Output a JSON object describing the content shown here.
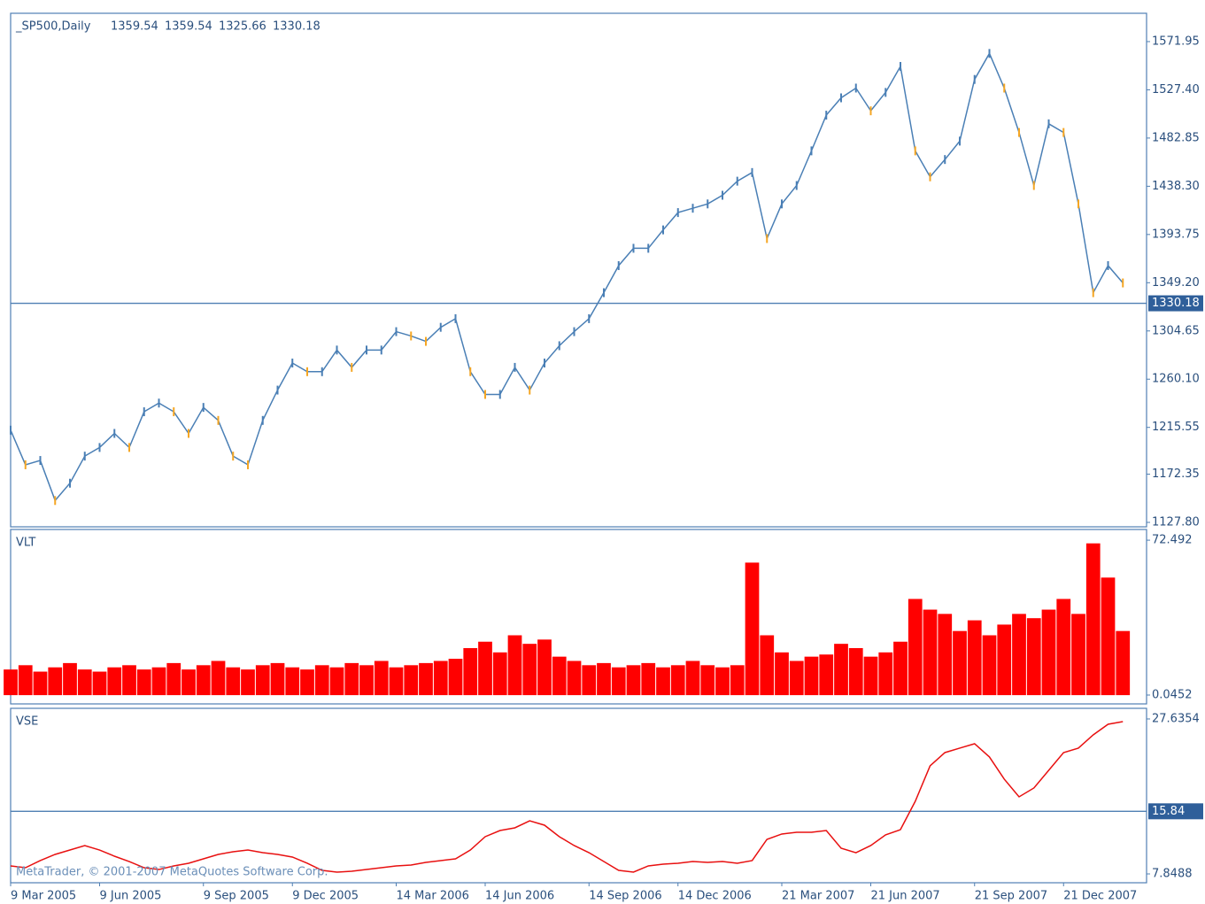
{
  "chart_data": [
    {
      "type": "line",
      "title": "_SP500,Daily",
      "quote": [
        1359.54,
        1359.54,
        1325.66,
        1330.18
      ],
      "color": "#4a7fb5",
      "down_color": "#f5a623",
      "values": [
        1213,
        1181,
        1185,
        1148,
        1164,
        1189,
        1197,
        1210,
        1197,
        1230,
        1238,
        1230,
        1210,
        1234,
        1222,
        1189,
        1181,
        1222,
        1250,
        1275,
        1267,
        1267,
        1287,
        1271,
        1287,
        1287,
        1304,
        1300,
        1295,
        1308,
        1316,
        1267,
        1246,
        1246,
        1271,
        1250,
        1275,
        1291,
        1304,
        1316,
        1340,
        1365,
        1381,
        1381,
        1398,
        1414,
        1418,
        1422,
        1430,
        1443,
        1451,
        1390,
        1422,
        1439,
        1471,
        1504,
        1520,
        1529,
        1508,
        1525,
        1549,
        1471,
        1447,
        1463,
        1480,
        1537,
        1561,
        1529,
        1488,
        1439,
        1496,
        1488,
        1422,
        1340,
        1365,
        1349
      ],
      "ylim": [
        1123.7,
        1598.1
      ],
      "yticks": [
        1571.95,
        {
          "value": 1527.4,
          "label": "1527.40"
        },
        1482.85,
        {
          "value": 1438.3,
          "label": "1438.30"
        },
        1393.75,
        {
          "value": 1349.2,
          "label": "1349.20"
        },
        1304.65,
        {
          "value": 1260.1,
          "label": "1260.10"
        },
        1215.55,
        1172.35,
        {
          "value": 1127.8,
          "label": "1127.80"
        }
      ],
      "level": 1330.18
    },
    {
      "type": "bar",
      "title": "VLT",
      "color": "#ff0000",
      "values": [
        12,
        14,
        11,
        13,
        15,
        12,
        11,
        13,
        14,
        12,
        13,
        15,
        12,
        14,
        16,
        13,
        12,
        14,
        15,
        13,
        12,
        14,
        13,
        15,
        14,
        16,
        13,
        14,
        15,
        16,
        17,
        22,
        25,
        20,
        28,
        24,
        26,
        18,
        16,
        14,
        15,
        13,
        14,
        15,
        13,
        14,
        16,
        14,
        13,
        14,
        62,
        28,
        20,
        16,
        18,
        19,
        24,
        22,
        18,
        20,
        25,
        45,
        40,
        38,
        30,
        35,
        28,
        33,
        38,
        36,
        40,
        45,
        38,
        71,
        55,
        30
      ],
      "ylim": [
        -4.1,
        77.5
      ],
      "yticks": [
        72.492,
        0.0452
      ]
    },
    {
      "type": "line",
      "title": "VSE",
      "color": "#e81010",
      "values": [
        8.87,
        8.64,
        9.55,
        10.34,
        10.9,
        11.47,
        10.9,
        10.11,
        9.43,
        8.64,
        8.41,
        8.87,
        9.21,
        9.77,
        10.34,
        10.68,
        10.9,
        10.56,
        10.34,
        10.0,
        9.21,
        8.3,
        8.08,
        8.19,
        8.41,
        8.64,
        8.87,
        8.98,
        9.32,
        9.55,
        9.77,
        10.9,
        12.6,
        13.39,
        13.73,
        14.63,
        14.07,
        12.6,
        11.47,
        10.56,
        9.43,
        8.3,
        8.08,
        8.87,
        9.09,
        9.21,
        9.43,
        9.32,
        9.43,
        9.21,
        9.55,
        12.26,
        12.94,
        13.16,
        13.16,
        13.39,
        11.13,
        10.56,
        11.47,
        12.83,
        13.5,
        17.12,
        21.65,
        23.34,
        23.91,
        24.47,
        22.78,
        19.95,
        17.69,
        18.82,
        21.08,
        23.34,
        23.91,
        25.6,
        26.96,
        27.3
      ],
      "ylim": [
        6.72,
        28.99
      ],
      "yticks": [
        27.6354,
        7.8488
      ],
      "level": 15.84,
      "categories": [
        "9 Mar 2005",
        null,
        null,
        null,
        null,
        null,
        "9 Jun 2005",
        null,
        null,
        null,
        null,
        null,
        null,
        "9 Sep 2005",
        null,
        null,
        null,
        null,
        null,
        "9 Dec 2005",
        null,
        null,
        null,
        null,
        null,
        null,
        "14 Mar 2006",
        null,
        null,
        null,
        null,
        null,
        "14 Jun 2006",
        null,
        null,
        null,
        null,
        null,
        null,
        "14 Sep 2006",
        null,
        null,
        null,
        null,
        null,
        "14 Dec 2006",
        null,
        null,
        null,
        null,
        null,
        null,
        "21 Mar 2007",
        null,
        null,
        null,
        null,
        null,
        "21 Jun 2007",
        null,
        null,
        null,
        null,
        null,
        null,
        "21 Sep 2007",
        null,
        null,
        null,
        null,
        null,
        "21 Dec 2007",
        null,
        null,
        null,
        null
      ],
      "footer": "MetaTrader, © 2001-2007 MetaQuotes Software Corp."
    }
  ]
}
